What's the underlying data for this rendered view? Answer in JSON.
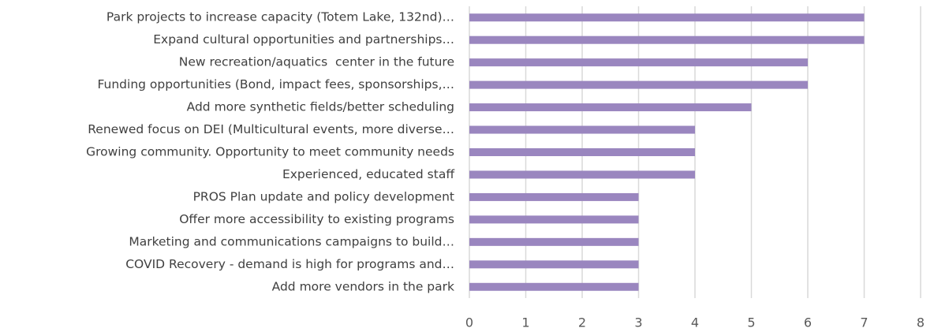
{
  "chart_data": {
    "type": "bar",
    "orientation": "horizontal",
    "categories": [
      "Park projects to increase capacity (Totem Lake, 132nd)…",
      "Expand cultural opportunities and partnerships…",
      "New recreation/aquatics  center in the future",
      "Funding opportunities (Bond, impact fees, sponsorships,…",
      "Add more synthetic fields/better scheduling",
      "Renewed focus on DEI (Multicultural events, more diverse…",
      "Growing community. Opportunity to meet community needs",
      "Experienced, educated staff",
      "PROS Plan update and policy development",
      "Offer more accessibility to existing programs",
      "Marketing and communications campaigns to build…",
      "COVID Recovery - demand is high for programs and…",
      "Add more vendors in the park"
    ],
    "values": [
      7,
      7,
      6,
      6,
      5,
      4,
      4,
      4,
      3,
      3,
      3,
      3,
      3
    ],
    "color": "#9a86bf",
    "xlim": [
      0,
      8
    ],
    "xticks": [
      0,
      1,
      2,
      3,
      4,
      5,
      6,
      7,
      8
    ],
    "grid": true
  }
}
